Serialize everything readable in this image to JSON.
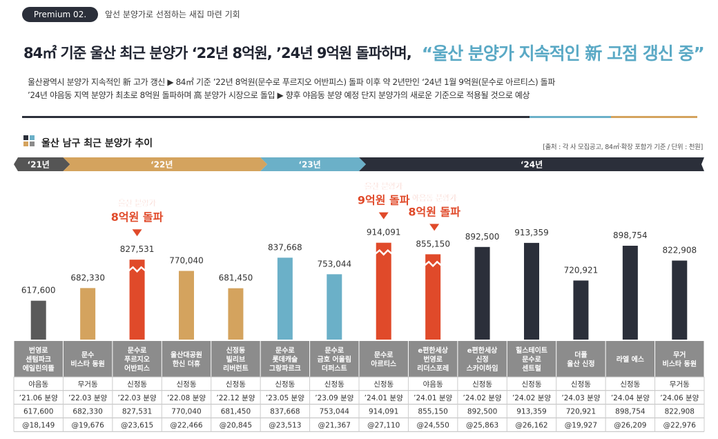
{
  "header": {
    "badge": "Premium 02.",
    "badge_sub": "앞선 분양가로 선점하는 새집 마련 기회",
    "headline_main": "84㎡ 기준 울산 최근 분양가 ‘22년 8억원, ’24년 9억원 돌파하며,",
    "headline_accent": "“울산 분양가 지속적인 新 고점 갱신 중”",
    "desc_line1": "울산광역시 분양가 지속적인 新 고가 갱신 ▶ 84㎡ 기준 ’22년 8억원(문수로 푸르지오 어반피스) 돌파 이후 약 2년만인 ‘24년 1월 9억원(문수로 아르티스) 돌파",
    "desc_line2": "’24년 야음동 지역 분양가 최초로 8억원 돌파하며 高 분양가 시장으로 돌입 ▶ 향후 야음동 분양 예정 단지 분양가의 새로운 기준으로 적용될 것으로 예상"
  },
  "chart_section": {
    "title": "울산 남구 최근 분양가 추이",
    "source": "[출처 : 각 사 모집공고, 84㎡·확장 포함가 기준 / 단위 : 천원]"
  },
  "colors": {
    "dark": "#2b2f3a",
    "tan": "#d4a35e",
    "blue": "#6bb0c8",
    "red": "#e04a2a",
    "gray": "#5a5a5a",
    "table_header": "#8c8c8c"
  },
  "chart_data": {
    "type": "bar",
    "title": "울산 남구 최근 분양가 추이",
    "ylabel": "",
    "year_bands": [
      {
        "label": "‘21년",
        "color": "#555555",
        "first": 0,
        "last": 0
      },
      {
        "label": "‘22년",
        "color": "#d4a35e",
        "first": 1,
        "last": 4
      },
      {
        "label": "‘23년",
        "color": "#6bb0c8",
        "first": 5,
        "last": 6
      },
      {
        "label": "‘24년",
        "color": "#2b2f3a",
        "first": 7,
        "last": 13
      }
    ],
    "categories": [
      "번영로 센텀파크 에일린의뜰",
      "문수 비스타 동원",
      "문수로 푸르지오 어반피스",
      "울산대공원 한신 더휴",
      "신정동 빌리브 리버런트",
      "문수로 롯데캐슬 그랑파르크",
      "문수로 금호 어울림 더퍼스트",
      "문수로 아르티스",
      "e편한세상 번영로 리더스포레",
      "e편한세상 신정 스카이하임",
      "힐스테이트 문수로 센트럴",
      "더폴 울산 신정",
      "라엘 에스",
      "무거 비스타 동원"
    ],
    "names": [
      [
        "번영로",
        "센텀파크",
        "에일린의뜰"
      ],
      [
        "문수",
        "비스타 동원"
      ],
      [
        "문수로",
        "푸르지오",
        "어반피스"
      ],
      [
        "울산대공원",
        "한신 더휴"
      ],
      [
        "신정동",
        "빌리브",
        "리버런트"
      ],
      [
        "문수로",
        "롯데캐슬",
        "그랑파르크"
      ],
      [
        "문수로",
        "금호 어울림",
        "더퍼스트"
      ],
      [
        "문수로",
        "아르티스"
      ],
      [
        "e편한세상",
        "번영로",
        "리더스포레"
      ],
      [
        "e편한세상",
        "신정",
        "스카이하임"
      ],
      [
        "힐스테이트",
        "문수로",
        "센트럴"
      ],
      [
        "더폴",
        "울산 신정"
      ],
      [
        "라엘 에스"
      ],
      [
        "무거",
        "비스타 동원"
      ]
    ],
    "values": [
      617600,
      682330,
      827531,
      770040,
      681450,
      837668,
      753044,
      914091,
      855150,
      892500,
      913359,
      720921,
      898754,
      822908
    ],
    "value_labels": [
      "617,600",
      "682,330",
      "827,531",
      "770,040",
      "681,450",
      "837,668",
      "753,044",
      "914,091",
      "855,150",
      "892,500",
      "913,359",
      "720,921",
      "898,754",
      "822,908"
    ],
    "bar_colors": [
      "#5a5a5a",
      "#d4a35e",
      "#e04a2a",
      "#d4a35e",
      "#d4a35e",
      "#6bb0c8",
      "#6bb0c8",
      "#e04a2a",
      "#e04a2a",
      "#2b2f3a",
      "#2b2f3a",
      "#2b2f3a",
      "#2b2f3a",
      "#2b2f3a"
    ],
    "highlighted": [
      2,
      7,
      8
    ],
    "annotations": [
      {
        "index": 2,
        "line1": "울산 분양가",
        "line2": "8억원 돌파"
      },
      {
        "index": 7,
        "line1": "울산 분양가",
        "line2": "9억원 돌파"
      },
      {
        "index": 8,
        "line1": "야음동 분양가",
        "line2": "8억원 돌파"
      }
    ],
    "ylim": [
      0,
      950000
    ],
    "table": {
      "districts": [
        "야음동",
        "무거동",
        "신정동",
        "신정동",
        "신정동",
        "신정동",
        "신정동",
        "신정동",
        "야음동",
        "신정동",
        "신정동",
        "신정동",
        "신정동",
        "무거동"
      ],
      "sale_dates": [
        "’21.06 분양",
        "’22.03 분양",
        "’22.03 분양",
        "’22.08 분양",
        "’22.12 분양",
        "’23.05 분양",
        "’23.09 분양",
        "’24.01 분양",
        "’24.01 분양",
        "’24.02 분양",
        "’24.02 분양",
        "’24.03 분양",
        "’24.04 분양",
        "’24.06 분양"
      ],
      "prices": [
        "617,600",
        "682,330",
        "827,531",
        "770,040",
        "681,450",
        "837,668",
        "753,044",
        "914,091",
        "855,150",
        "892,500",
        "913,359",
        "720,921",
        "898,754",
        "822,908"
      ],
      "per_pyeong": [
        "@18,149",
        "@19,676",
        "@23,615",
        "@22,466",
        "@20,845",
        "@23,513",
        "@21,367",
        "@27,110",
        "@24,550",
        "@25,863",
        "@26,162",
        "@19,927",
        "@26,209",
        "@22,976"
      ]
    }
  }
}
